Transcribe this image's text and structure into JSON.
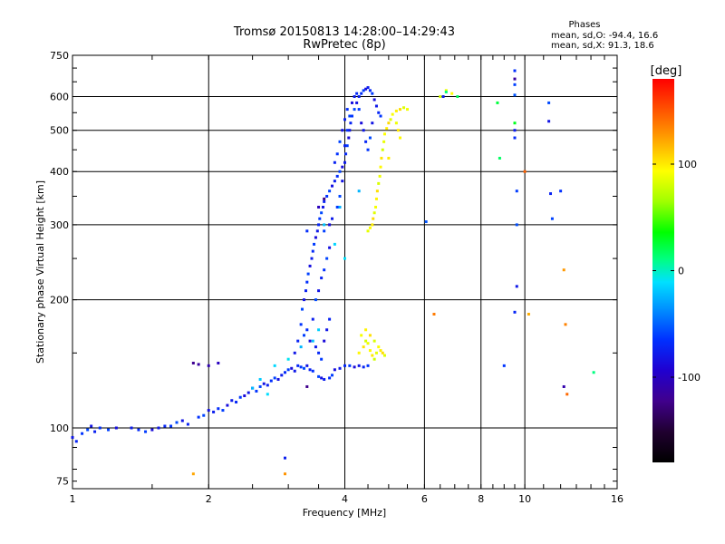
{
  "chart_data": {
    "type": "scatter",
    "title": "Tromsø 20150813 14:28:00–14:29:43",
    "subtitle": "RwPretec (8p)",
    "stats": {
      "heading": "Phases",
      "line_o": "mean, sd,O: -94.4, 16.6",
      "line_x": "mean, sd,X:  91.3, 18.6"
    },
    "xlabel": "Frequency [MHz]",
    "ylabel": "Stationary phase Virtual Height [km]",
    "xscale": "log",
    "yscale": "log",
    "xlim": [
      1,
      16
    ],
    "ylim": [
      72,
      750
    ],
    "x_ticks": [
      1,
      2,
      4,
      6,
      8,
      10,
      16
    ],
    "x_tick_labels": [
      "1",
      "2",
      "4",
      "6",
      "8",
      "10",
      "16"
    ],
    "y_ticks": [
      75,
      100,
      200,
      300,
      400,
      500,
      600,
      750
    ],
    "y_tick_labels": [
      "75",
      "100",
      "200",
      "300",
      "400",
      "500",
      "600",
      "750"
    ],
    "major_grid_x": [
      2,
      4,
      6,
      8,
      10
    ],
    "major_grid_y": [
      100,
      200,
      300,
      400,
      500,
      600
    ],
    "colorbar": {
      "label": "[deg]",
      "range": [
        -180,
        180
      ],
      "ticks": [
        100,
        0,
        -100
      ],
      "tick_labels": [
        "100",
        "0",
        "-100"
      ]
    },
    "series": [
      {
        "trace": "blue-low",
        "phase_deg": -100,
        "points": [
          [
            1.0,
            95
          ],
          [
            1.02,
            93
          ],
          [
            1.05,
            97
          ],
          [
            1.08,
            99
          ],
          [
            1.1,
            101
          ],
          [
            1.12,
            98
          ],
          [
            1.15,
            100
          ],
          [
            1.2,
            99
          ],
          [
            1.25,
            100
          ],
          [
            1.35,
            100
          ],
          [
            1.4,
            99
          ],
          [
            1.45,
            98
          ],
          [
            1.5,
            99
          ],
          [
            1.55,
            100
          ],
          [
            1.6,
            101
          ],
          [
            1.65,
            101
          ],
          [
            1.7,
            103
          ],
          [
            1.75,
            104
          ],
          [
            1.8,
            102
          ],
          [
            1.9,
            106
          ],
          [
            1.95,
            107
          ],
          [
            2.0,
            110
          ],
          [
            2.05,
            109
          ],
          [
            2.1,
            111
          ],
          [
            2.15,
            110
          ],
          [
            2.2,
            113
          ],
          [
            2.25,
            116
          ],
          [
            2.3,
            115
          ],
          [
            2.35,
            118
          ],
          [
            2.4,
            119
          ],
          [
            2.45,
            121
          ],
          [
            2.5,
            124
          ],
          [
            2.55,
            122
          ],
          [
            2.6,
            125
          ],
          [
            2.65,
            127
          ],
          [
            2.7,
            126
          ],
          [
            2.75,
            129
          ],
          [
            2.8,
            131
          ],
          [
            2.85,
            130
          ],
          [
            2.9,
            133
          ],
          [
            2.95,
            135
          ],
          [
            3.0,
            137
          ],
          [
            3.05,
            138
          ],
          [
            3.1,
            136
          ],
          [
            3.15,
            140
          ],
          [
            3.2,
            139
          ],
          [
            3.25,
            138
          ],
          [
            3.3,
            140
          ],
          [
            3.35,
            137
          ],
          [
            3.4,
            136
          ],
          [
            3.5,
            132
          ],
          [
            3.55,
            131
          ],
          [
            3.6,
            130
          ],
          [
            3.7,
            131
          ],
          [
            3.75,
            133
          ],
          [
            3.8,
            137
          ],
          [
            3.9,
            138
          ],
          [
            4.0,
            140
          ],
          [
            4.1,
            140
          ],
          [
            4.2,
            139
          ],
          [
            4.3,
            140
          ],
          [
            4.4,
            139
          ],
          [
            4.5,
            140
          ]
        ]
      },
      {
        "trace": "blue-rising",
        "phase_deg": -100,
        "points": [
          [
            3.1,
            150
          ],
          [
            3.15,
            160
          ],
          [
            3.2,
            175
          ],
          [
            3.22,
            190
          ],
          [
            3.25,
            200
          ],
          [
            3.28,
            210
          ],
          [
            3.3,
            220
          ],
          [
            3.32,
            230
          ],
          [
            3.35,
            240
          ],
          [
            3.38,
            250
          ],
          [
            3.4,
            260
          ],
          [
            3.42,
            270
          ],
          [
            3.45,
            280
          ],
          [
            3.48,
            290
          ],
          [
            3.5,
            300
          ],
          [
            3.52,
            310
          ],
          [
            3.55,
            320
          ],
          [
            3.58,
            330
          ],
          [
            3.6,
            340
          ],
          [
            3.65,
            350
          ],
          [
            3.7,
            360
          ],
          [
            3.75,
            370
          ],
          [
            3.8,
            380
          ],
          [
            3.85,
            390
          ],
          [
            3.9,
            400
          ],
          [
            3.95,
            410
          ],
          [
            4.0,
            420
          ],
          [
            4.02,
            440
          ],
          [
            4.05,
            460
          ],
          [
            4.08,
            480
          ],
          [
            4.1,
            500
          ],
          [
            4.12,
            520
          ],
          [
            4.15,
            540
          ],
          [
            4.2,
            560
          ],
          [
            4.25,
            580
          ],
          [
            4.3,
            600
          ],
          [
            4.35,
            610
          ],
          [
            4.4,
            620
          ],
          [
            4.45,
            625
          ],
          [
            4.5,
            630
          ],
          [
            4.55,
            620
          ],
          [
            4.6,
            610
          ],
          [
            4.65,
            590
          ],
          [
            4.7,
            570
          ],
          [
            4.75,
            550
          ],
          [
            4.8,
            540
          ],
          [
            3.45,
            200
          ],
          [
            3.5,
            210
          ],
          [
            3.55,
            225
          ],
          [
            3.6,
            235
          ],
          [
            3.65,
            250
          ],
          [
            3.7,
            265
          ],
          [
            3.4,
            180
          ],
          [
            3.3,
            170
          ],
          [
            3.25,
            165
          ],
          [
            3.35,
            160
          ],
          [
            3.45,
            155
          ],
          [
            3.5,
            150
          ],
          [
            3.55,
            145
          ],
          [
            3.6,
            160
          ],
          [
            3.65,
            170
          ],
          [
            3.7,
            180
          ],
          [
            3.85,
            330
          ],
          [
            3.9,
            350
          ],
          [
            3.95,
            380
          ],
          [
            4.0,
            460
          ],
          [
            4.05,
            500
          ],
          [
            4.1,
            540
          ],
          [
            4.15,
            580
          ],
          [
            4.2,
            600
          ],
          [
            4.25,
            610
          ],
          [
            4.3,
            560
          ],
          [
            4.35,
            520
          ],
          [
            4.4,
            500
          ],
          [
            4.45,
            470
          ],
          [
            4.5,
            450
          ],
          [
            4.55,
            480
          ],
          [
            4.6,
            520
          ],
          [
            3.8,
            420
          ],
          [
            3.85,
            440
          ],
          [
            3.9,
            470
          ],
          [
            3.95,
            500
          ],
          [
            4.0,
            530
          ],
          [
            4.05,
            560
          ],
          [
            3.6,
            290
          ],
          [
            3.7,
            300
          ],
          [
            3.75,
            310
          ]
        ]
      },
      {
        "trace": "cyan-scatter",
        "phase_deg": -30,
        "points": [
          [
            2.5,
            124
          ],
          [
            2.6,
            130
          ],
          [
            2.8,
            140
          ],
          [
            3.0,
            145
          ],
          [
            3.2,
            155
          ],
          [
            3.6,
            300
          ],
          [
            3.8,
            270
          ],
          [
            4.0,
            250
          ],
          [
            4.3,
            360
          ],
          [
            3.4,
            160
          ],
          [
            3.5,
            170
          ],
          [
            2.7,
            120
          ],
          [
            3.9,
            330
          ]
        ]
      },
      {
        "trace": "yellow-x",
        "phase_deg": 100,
        "points": [
          [
            4.5,
            290
          ],
          [
            4.55,
            295
          ],
          [
            4.6,
            300
          ],
          [
            4.62,
            310
          ],
          [
            4.65,
            320
          ],
          [
            4.68,
            330
          ],
          [
            4.7,
            345
          ],
          [
            4.72,
            360
          ],
          [
            4.75,
            375
          ],
          [
            4.78,
            390
          ],
          [
            4.8,
            410
          ],
          [
            4.82,
            430
          ],
          [
            4.85,
            450
          ],
          [
            4.88,
            470
          ],
          [
            4.9,
            490
          ],
          [
            4.95,
            505
          ],
          [
            5.0,
            520
          ],
          [
            5.05,
            530
          ],
          [
            5.1,
            545
          ],
          [
            5.2,
            555
          ],
          [
            5.3,
            560
          ],
          [
            5.4,
            565
          ],
          [
            5.5,
            560
          ],
          [
            4.3,
            150
          ],
          [
            4.4,
            155
          ],
          [
            4.45,
            160
          ],
          [
            4.5,
            158
          ],
          [
            4.55,
            152
          ],
          [
            4.6,
            148
          ],
          [
            4.65,
            145
          ],
          [
            4.7,
            150
          ],
          [
            4.75,
            155
          ],
          [
            4.8,
            152
          ],
          [
            4.85,
            150
          ],
          [
            4.9,
            148
          ],
          [
            4.35,
            165
          ],
          [
            4.45,
            170
          ],
          [
            4.55,
            165
          ],
          [
            4.65,
            160
          ],
          [
            5.2,
            520
          ],
          [
            5.3,
            480
          ],
          [
            5.25,
            500
          ],
          [
            6.5,
            600
          ],
          [
            6.7,
            620
          ],
          [
            6.9,
            610
          ],
          [
            5.0,
            430
          ]
        ]
      },
      {
        "trace": "orange-isolated",
        "phase_deg": 140,
        "points": [
          [
            1.85,
            78
          ],
          [
            2.95,
            78
          ],
          [
            6.3,
            185
          ],
          [
            10.0,
            400
          ],
          [
            10.2,
            185
          ],
          [
            12.2,
            235
          ],
          [
            12.3,
            175
          ],
          [
            12.4,
            120
          ]
        ]
      },
      {
        "trace": "green-isolated",
        "phase_deg": 20,
        "points": [
          [
            6.7,
            615
          ],
          [
            7.1,
            600
          ],
          [
            8.7,
            580
          ],
          [
            9.5,
            520
          ],
          [
            14.2,
            135
          ],
          [
            8.8,
            430
          ]
        ]
      },
      {
        "trace": "sparse-high",
        "phase_deg": -95,
        "points": [
          [
            6.6,
            600
          ],
          [
            9.5,
            690
          ],
          [
            9.5,
            640
          ],
          [
            9.5,
            605
          ],
          [
            9.5,
            500
          ],
          [
            9.5,
            480
          ],
          [
            9.6,
            360
          ],
          [
            9.6,
            300
          ],
          [
            9.6,
            215
          ],
          [
            9.5,
            187
          ],
          [
            9.0,
            140
          ],
          [
            11.3,
            580
          ],
          [
            11.3,
            525
          ],
          [
            11.4,
            355
          ],
          [
            12.0,
            360
          ],
          [
            11.5,
            310
          ],
          [
            6.05,
            305
          ],
          [
            2.95,
            85
          ],
          [
            3.3,
            290
          ]
        ]
      },
      {
        "trace": "purple-scatter",
        "phase_deg": -140,
        "points": [
          [
            1.85,
            142
          ],
          [
            1.9,
            141
          ],
          [
            2.0,
            140
          ],
          [
            2.1,
            142
          ],
          [
            3.3,
            125
          ],
          [
            9.5,
            660
          ],
          [
            12.2,
            125
          ],
          [
            3.5,
            330
          ],
          [
            3.6,
            345
          ]
        ]
      }
    ]
  }
}
